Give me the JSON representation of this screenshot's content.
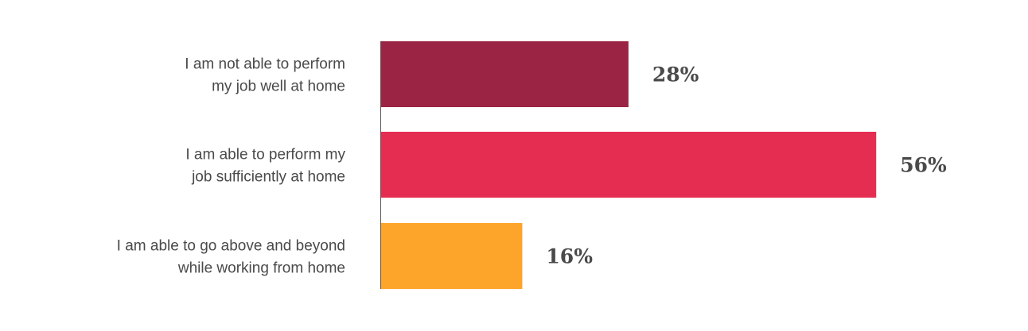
{
  "chart_data": {
    "type": "bar",
    "orientation": "horizontal",
    "categories": [
      [
        "I am not able to perform",
        "my job well at home"
      ],
      [
        "I am able to perform my",
        "job sufficiently at home"
      ],
      [
        "I am able to go above and beyond",
        "while working from home"
      ]
    ],
    "values": [
      28,
      56,
      16
    ],
    "value_labels": [
      "28%",
      "56%",
      "16%"
    ],
    "colors": [
      "#9b2445",
      "#e52d52",
      "#fda42b"
    ],
    "xlim": [
      0,
      100
    ],
    "grid": false,
    "legend": "none"
  }
}
